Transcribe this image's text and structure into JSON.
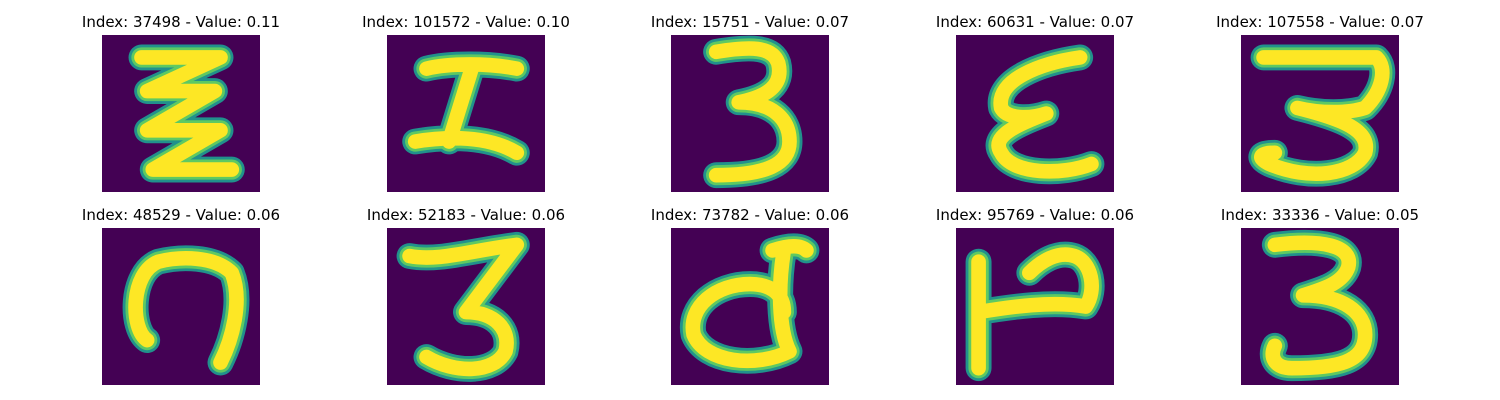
{
  "colors": {
    "background": "#440154",
    "stroke_core": "#fde725",
    "stroke_mid": "#5ec962",
    "stroke_edge": "#21918c"
  },
  "colormap": "viridis",
  "panels": [
    {
      "title": "Index: 37498 - Value: 0.11",
      "index": 37498,
      "value": 0.11,
      "glyph": "glyph-1"
    },
    {
      "title": "Index: 101572 - Value: 0.10",
      "index": 101572,
      "value": 0.1,
      "glyph": "glyph-2"
    },
    {
      "title": "Index: 15751 - Value: 0.07",
      "index": 15751,
      "value": 0.07,
      "glyph": "glyph-3"
    },
    {
      "title": "Index: 60631 - Value: 0.07",
      "index": 60631,
      "value": 0.07,
      "glyph": "glyph-4"
    },
    {
      "title": "Index: 107558 - Value: 0.07",
      "index": 107558,
      "value": 0.07,
      "glyph": "glyph-5"
    },
    {
      "title": "Index: 48529 - Value: 0.06",
      "index": 48529,
      "value": 0.06,
      "glyph": "glyph-6"
    },
    {
      "title": "Index: 52183 - Value: 0.06",
      "index": 52183,
      "value": 0.06,
      "glyph": "glyph-7"
    },
    {
      "title": "Index: 73782 - Value: 0.06",
      "index": 73782,
      "value": 0.06,
      "glyph": "glyph-8"
    },
    {
      "title": "Index: 95769 - Value: 0.06",
      "index": 95769,
      "value": 0.06,
      "glyph": "glyph-9"
    },
    {
      "title": "Index: 33336 - Value: 0.05",
      "index": 33336,
      "value": 0.05,
      "glyph": "glyph-10"
    }
  ]
}
